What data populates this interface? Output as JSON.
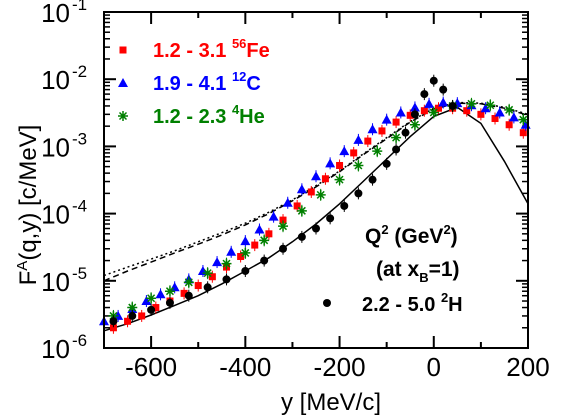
{
  "chart_data": {
    "type": "scatter",
    "xlabel": "y [MeV/c]",
    "ylabel": "F^A(q,y) [c/MeV]",
    "xlim": [
      -700,
      200
    ],
    "ylim": [
      1e-06,
      0.1
    ],
    "yscale": "log",
    "x_ticks": [
      -600,
      -400,
      -200,
      0,
      200
    ],
    "x_tick_labels": [
      "-600",
      "-400",
      "-200",
      "0",
      "200"
    ],
    "y_ticks": [
      1e-06,
      1e-05,
      0.0001,
      0.001,
      0.01,
      0.1
    ],
    "y_tick_labels": [
      {
        "base": "10",
        "exp": "-6"
      },
      {
        "base": "10",
        "exp": "-5"
      },
      {
        "base": "10",
        "exp": "-4"
      },
      {
        "base": "10",
        "exp": "-3"
      },
      {
        "base": "10",
        "exp": "-2"
      },
      {
        "base": "10",
        "exp": "-1"
      }
    ],
    "legend_position": "top-left",
    "legend": [
      {
        "range": "1.2 - 3.1",
        "mass": "56",
        "element": "Fe",
        "color": "#ff0000",
        "marker": "square"
      },
      {
        "range": "1.9 - 4.1",
        "mass": "12",
        "element": "C",
        "color": "#0000ff",
        "marker": "triangle"
      },
      {
        "range": "1.2 - 2.3",
        "mass": "4",
        "element": "He",
        "color": "#008000",
        "marker": "asterisk"
      }
    ],
    "deuteron_label": {
      "range": "2.2 - 5.0",
      "mass": "2",
      "element": "H",
      "color": "#000000",
      "marker": "circle"
    },
    "annotation": {
      "line1_pre": "Q",
      "line1_sup": "2",
      "line1_mid": " (GeV",
      "line1_sup2": "2",
      "line1_post": ")",
      "line2_pre": "(at x",
      "line2_sub": "B",
      "line2_post": "=1)"
    },
    "series": [
      {
        "id": "fe",
        "color": "#ff0000",
        "marker": "square",
        "x": [
          -680,
          -650,
          -620,
          -590,
          -560,
          -530,
          -500,
          -470,
          -440,
          -410,
          -380,
          -350,
          -320,
          -290,
          -260,
          -230,
          -200,
          -170,
          -140,
          -110,
          -80,
          -50,
          -20,
          10,
          40,
          70,
          100,
          130,
          160,
          190
        ],
        "y": [
          2e-06,
          2.5e-06,
          3e-06,
          4e-06,
          5e-06,
          6.5e-06,
          8.5e-06,
          1.15e-05,
          1.6e-05,
          2.3e-05,
          3.4e-05,
          5e-05,
          8e-05,
          0.00013,
          0.00021,
          0.00033,
          0.00052,
          0.0008,
          0.0012,
          0.0017,
          0.0023,
          0.0029,
          0.0034,
          0.0037,
          0.0037,
          0.0034,
          0.003,
          0.0026,
          0.0021,
          0.0016
        ]
      },
      {
        "id": "c",
        "color": "#0000ff",
        "marker": "triangle",
        "x": [
          -700,
          -670,
          -640,
          -610,
          -580,
          -550,
          -520,
          -490,
          -460,
          -430,
          -400,
          -370,
          -340,
          -310,
          -280,
          -250,
          -220,
          -190,
          -160,
          -130,
          -100,
          -70,
          -40,
          -10,
          20,
          50,
          80,
          110,
          140,
          170,
          195
        ],
        "y": [
          2.5e-06,
          3e-06,
          3.8e-06,
          5e-06,
          6.3e-06,
          8e-06,
          1.05e-05,
          1.4e-05,
          1.9e-05,
          2.7e-05,
          3.9e-05,
          5.8e-05,
          9e-05,
          0.000145,
          0.00023,
          0.00036,
          0.00056,
          0.00085,
          0.00125,
          0.0018,
          0.0025,
          0.0032,
          0.0038,
          0.0043,
          0.0045,
          0.0044,
          0.0041,
          0.0037,
          0.0032,
          0.0027,
          0.0021
        ]
      },
      {
        "id": "he",
        "color": "#008000",
        "marker": "asterisk",
        "x": [
          -680,
          -640,
          -600,
          -560,
          -520,
          -480,
          -440,
          -400,
          -360,
          -320,
          -280,
          -240,
          -200,
          -160,
          -120,
          -80,
          -40,
          0,
          40,
          80,
          120,
          160,
          190
        ],
        "y": [
          3e-06,
          4e-06,
          5.5e-06,
          7e-06,
          9.5e-06,
          1.3e-05,
          1.8e-05,
          2.6e-05,
          4e-05,
          6.5e-05,
          0.00011,
          0.00019,
          0.00032,
          0.00052,
          0.00085,
          0.00135,
          0.0021,
          0.0032,
          0.004,
          0.0043,
          0.0041,
          0.0035,
          0.0025
        ]
      },
      {
        "id": "d",
        "color": "#000000",
        "marker": "circle",
        "x": [
          -680,
          -640,
          -600,
          -560,
          -520,
          -480,
          -440,
          -400,
          -360,
          -320,
          -280,
          -250,
          -220,
          -190,
          -160,
          -130,
          -100,
          -80,
          -60,
          -40,
          -20,
          0,
          20,
          40
        ],
        "y": [
          2.5e-06,
          3e-06,
          3.7e-06,
          4.7e-06,
          6e-06,
          8e-06,
          1.05e-05,
          1.4e-05,
          2e-05,
          3e-05,
          4.5e-05,
          6e-05,
          8.5e-05,
          0.00013,
          0.0002,
          0.00032,
          0.00055,
          0.0009,
          0.0016,
          0.003,
          0.006,
          0.0095,
          0.007,
          0.004
        ]
      }
    ],
    "curves": [
      {
        "id": "theory-solid",
        "style": "solid",
        "x": [
          -700,
          -650,
          -600,
          -550,
          -500,
          -450,
          -400,
          -350,
          -300,
          -250,
          -200,
          -150,
          -100,
          -50,
          0,
          50,
          100,
          150,
          200
        ],
        "y": [
          1.8e-06,
          2.3e-06,
          3.1e-06,
          4.3e-06,
          6e-06,
          9e-06,
          1.4e-05,
          2.2e-05,
          3.8e-05,
          7e-05,
          0.00014,
          0.0003,
          0.00065,
          0.0014,
          0.0028,
          0.0038,
          0.0022,
          0.0006,
          0.00014
        ]
      },
      {
        "id": "theory-dashed",
        "style": "dashed",
        "x": [
          -700,
          -650,
          -600,
          -550,
          -500,
          -450,
          -400,
          -350,
          -300,
          -250,
          -200,
          -150,
          -100,
          -50,
          0,
          50,
          100,
          150,
          200
        ],
        "y": [
          1e-05,
          1.4e-05,
          1.9e-05,
          2.6e-05,
          3.5e-05,
          4.8e-05,
          6.8e-05,
          0.0001,
          0.000155,
          0.00025,
          0.00042,
          0.00075,
          0.0013,
          0.0023,
          0.0036,
          0.0044,
          0.0043,
          0.0037,
          0.0029
        ]
      },
      {
        "id": "theory-dotted",
        "style": "dotted",
        "x": [
          -700,
          -650,
          -600,
          -550,
          -500,
          -450,
          -400,
          -350,
          -300,
          -250,
          -200,
          -150,
          -100,
          -50,
          0,
          50,
          100,
          150,
          200
        ],
        "y": [
          1.2e-05,
          1.6e-05,
          2.1e-05,
          2.8e-05,
          3.8e-05,
          5.2e-05,
          7.2e-05,
          0.000105,
          0.00016,
          0.00026,
          0.00043,
          0.00077,
          0.00135,
          0.00235,
          0.0037,
          0.0045,
          0.0044,
          0.0038,
          0.003
        ]
      }
    ]
  }
}
